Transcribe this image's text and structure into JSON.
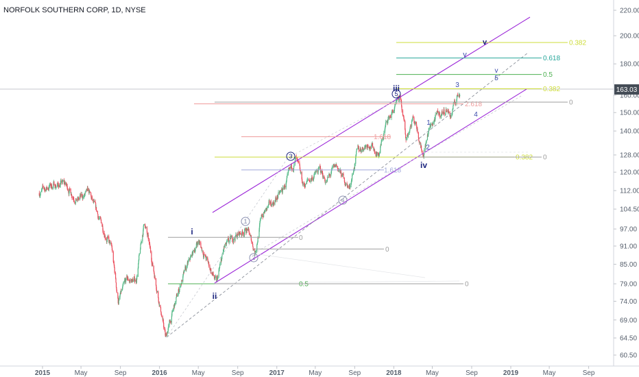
{
  "title": "NORFOLK SOUTHERN CORP, 1D, NYSE",
  "price_badge": "163.03",
  "colors": {
    "up": "#53b987",
    "down": "#eb4d5c",
    "channel": "#9c27d8",
    "grid": "#e6e8eb",
    "badge": "#444c56",
    "wave_blue": "#1a237e"
  },
  "chart_data": {
    "type": "candlestick",
    "x_axis": {
      "ticks": [
        "2015",
        "May",
        "Sep",
        "2016",
        "May",
        "Sep",
        "2017",
        "May",
        "Sep",
        "2018",
        "May",
        "Sep",
        "2019",
        "May",
        "Sep"
      ]
    },
    "y_axis": {
      "scale": "log",
      "range": [
        58,
        225
      ],
      "ticks": [
        "220.00",
        "200.00",
        "180.00",
        "160.00",
        "150.00",
        "140.00",
        "128.00",
        "120.00",
        "112.00",
        "104.50",
        "97.00",
        "91.00",
        "85.00",
        "79.00",
        "74.00",
        "69.00",
        "64.50",
        "60.50"
      ]
    },
    "last_price": 163.03,
    "key_points": [
      {
        "date": "2014-12-20",
        "price": 111
      },
      {
        "date": "2015-01-25",
        "price": 114
      },
      {
        "date": "2015-03-10",
        "price": 115
      },
      {
        "date": "2015-04-20",
        "price": 108
      },
      {
        "date": "2015-05-25",
        "price": 111
      },
      {
        "date": "2015-07-10",
        "price": 97
      },
      {
        "date": "2015-08-05",
        "price": 90
      },
      {
        "date": "2015-08-25",
        "price": 74
      },
      {
        "date": "2015-09-20",
        "price": 80
      },
      {
        "date": "2015-10-20",
        "price": 80
      },
      {
        "date": "2015-11-15",
        "price": 100
      },
      {
        "date": "2015-12-20",
        "price": 80
      },
      {
        "date": "2016-01-20",
        "price": 64.5
      },
      {
        "date": "2016-03-10",
        "price": 80
      },
      {
        "date": "2016-05-01",
        "price": 93
      },
      {
        "date": "2016-06-27",
        "price": 79
      },
      {
        "date": "2016-07-20",
        "price": 90
      },
      {
        "date": "2016-08-20",
        "price": 94
      },
      {
        "date": "2016-10-01",
        "price": 97
      },
      {
        "date": "2016-10-25",
        "price": 89
      },
      {
        "date": "2016-11-15",
        "price": 102
      },
      {
        "date": "2017-01-20",
        "price": 112
      },
      {
        "date": "2017-03-01",
        "price": 126
      },
      {
        "date": "2017-03-25",
        "price": 114
      },
      {
        "date": "2017-05-15",
        "price": 121
      },
      {
        "date": "2017-06-05",
        "price": 116
      },
      {
        "date": "2017-07-05",
        "price": 123
      },
      {
        "date": "2017-08-15",
        "price": 113
      },
      {
        "date": "2017-09-10",
        "price": 130
      },
      {
        "date": "2017-10-15",
        "price": 134
      },
      {
        "date": "2017-11-15",
        "price": 128
      },
      {
        "date": "2017-12-10",
        "price": 145
      },
      {
        "date": "2018-01-22",
        "price": 158
      },
      {
        "date": "2018-02-08",
        "price": 136
      },
      {
        "date": "2018-02-28",
        "price": 147
      },
      {
        "date": "2018-03-12",
        "price": 144
      },
      {
        "date": "2018-04-02",
        "price": 128
      },
      {
        "date": "2018-04-20",
        "price": 140
      },
      {
        "date": "2018-05-10",
        "price": 147
      },
      {
        "date": "2018-05-25",
        "price": 149
      },
      {
        "date": "2018-06-15",
        "price": 152
      },
      {
        "date": "2018-06-28",
        "price": 148
      },
      {
        "date": "2018-07-10",
        "price": 155
      },
      {
        "date": "2018-07-26",
        "price": 163
      }
    ],
    "fib_levels": [
      {
        "label": "0.382",
        "price": 195,
        "color": "#cddc39"
      },
      {
        "label": "0.618",
        "price": 184,
        "color": "#26a69a"
      },
      {
        "label": "0.5",
        "price": 173,
        "color": "#4caf50"
      },
      {
        "label": "0.382",
        "price": 164,
        "color": "#cddc39"
      },
      {
        "label": "2.618",
        "price": 155,
        "color": "#ef9a9a"
      },
      {
        "label": "0",
        "price": 156,
        "color": "#9e9e9e"
      },
      {
        "label": "1.618",
        "price": 137,
        "color": "#ef9a9a"
      },
      {
        "label": "0.382",
        "price": 127,
        "color": "#cddc39"
      },
      {
        "label": "0",
        "price": 127,
        "color": "#9e9e9e"
      },
      {
        "label": "1.618",
        "price": 121,
        "color": "#9fa8da"
      },
      {
        "label": "0",
        "price": 94,
        "color": "#9e9e9e"
      },
      {
        "label": "0",
        "price": 90,
        "color": "#9e9e9e"
      },
      {
        "label": "0.5",
        "price": 79,
        "color": "#4caf50"
      },
      {
        "label": "0",
        "price": 79,
        "color": "#9e9e9e"
      }
    ],
    "wave_labels": [
      "i",
      "ii",
      "iii",
      "iv",
      "v",
      "v",
      "v",
      "1",
      "2",
      "3",
      "4",
      "5",
      "1",
      "2",
      "3",
      "4",
      "5"
    ]
  }
}
